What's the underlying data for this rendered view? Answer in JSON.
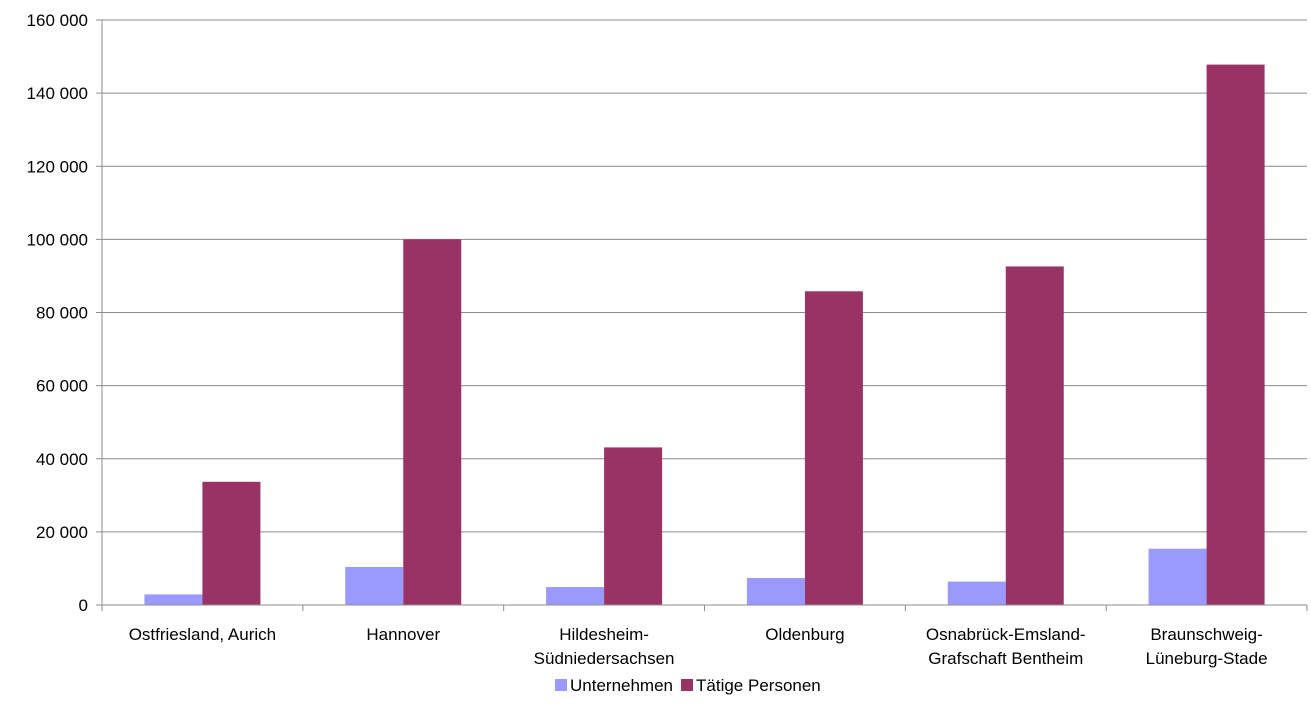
{
  "chart_data": {
    "type": "bar",
    "categories": [
      [
        "Ostfriesland, Aurich"
      ],
      [
        "Hannover"
      ],
      [
        "Hildesheim-",
        "Südniedersachsen"
      ],
      [
        "Oldenburg"
      ],
      [
        "Osnabrück-Emsland-",
        "Grafschaft Bentheim"
      ],
      [
        "Braunschweig-",
        "Lüneburg-Stade"
      ]
    ],
    "series": [
      {
        "name": "Unternehmen",
        "color": "#9999ff",
        "values": [
          2900,
          10400,
          4900,
          7400,
          6400,
          15400
        ]
      },
      {
        "name": "Tätige Personen",
        "color": "#993366",
        "values": [
          33700,
          100000,
          43100,
          85800,
          92600,
          147800
        ]
      }
    ],
    "ylim": [
      0,
      160000
    ],
    "yticks": [
      0,
      20000,
      40000,
      60000,
      80000,
      100000,
      120000,
      140000,
      160000
    ],
    "ytick_labels": [
      "0",
      "20 000",
      "40 000",
      "60 000",
      "80 000",
      "100 000",
      "120 000",
      "140 000",
      "160 000"
    ],
    "grid": true,
    "legend_position": "bottom-center"
  }
}
